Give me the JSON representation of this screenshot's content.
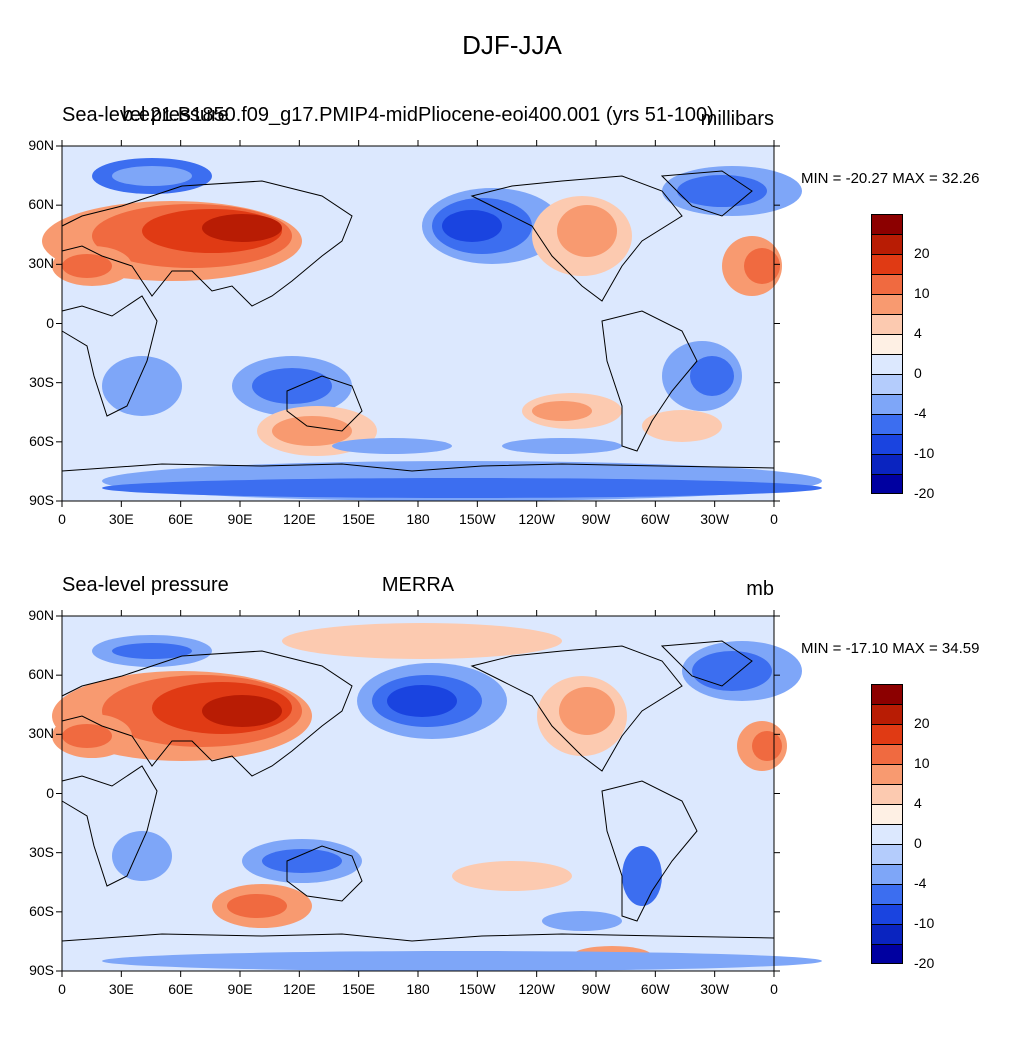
{
  "figure_title": "DJF-JJA",
  "colors": {
    "levels": [
      "#0000a0",
      "#0a24c0",
      "#1a44e0",
      "#3c6ef0",
      "#7ea6f8",
      "#b4ccfc",
      "#dce8fe",
      "#fef0e4",
      "#fccab0",
      "#f89a70",
      "#f06a40",
      "#e03a14",
      "#b81c04",
      "#8c0000"
    ],
    "ocean_base": "#dce8fe",
    "coast": "#000000"
  },
  "panels": [
    {
      "left_title": "Sea-level pressure",
      "center_title": "b.e21.B1850.f09_g17.PMIP4-midPliocene-eoi400.001 (yrs 51-100)",
      "right_title": "millibars",
      "stats": "MIN = -20.27 MAX =  32.26",
      "colorbar_labels": [
        "20",
        "10",
        "4",
        "0",
        "-4",
        "-10",
        "-20"
      ]
    },
    {
      "left_title": "Sea-level pressure",
      "center_title": "MERRA",
      "right_title": "mb",
      "stats": "MIN = -17.10 MAX =  34.59",
      "colorbar_labels": [
        "20",
        "10",
        "4",
        "0",
        "-4",
        "-10",
        "-20"
      ]
    }
  ],
  "axes": {
    "lat_labels": [
      "90N",
      "60N",
      "30N",
      "0",
      "30S",
      "60S",
      "90S"
    ],
    "lon_labels": [
      "0",
      "30E",
      "60E",
      "90E",
      "120E",
      "150E",
      "180",
      "150W",
      "120W",
      "90W",
      "60W",
      "30W",
      "0"
    ]
  }
}
